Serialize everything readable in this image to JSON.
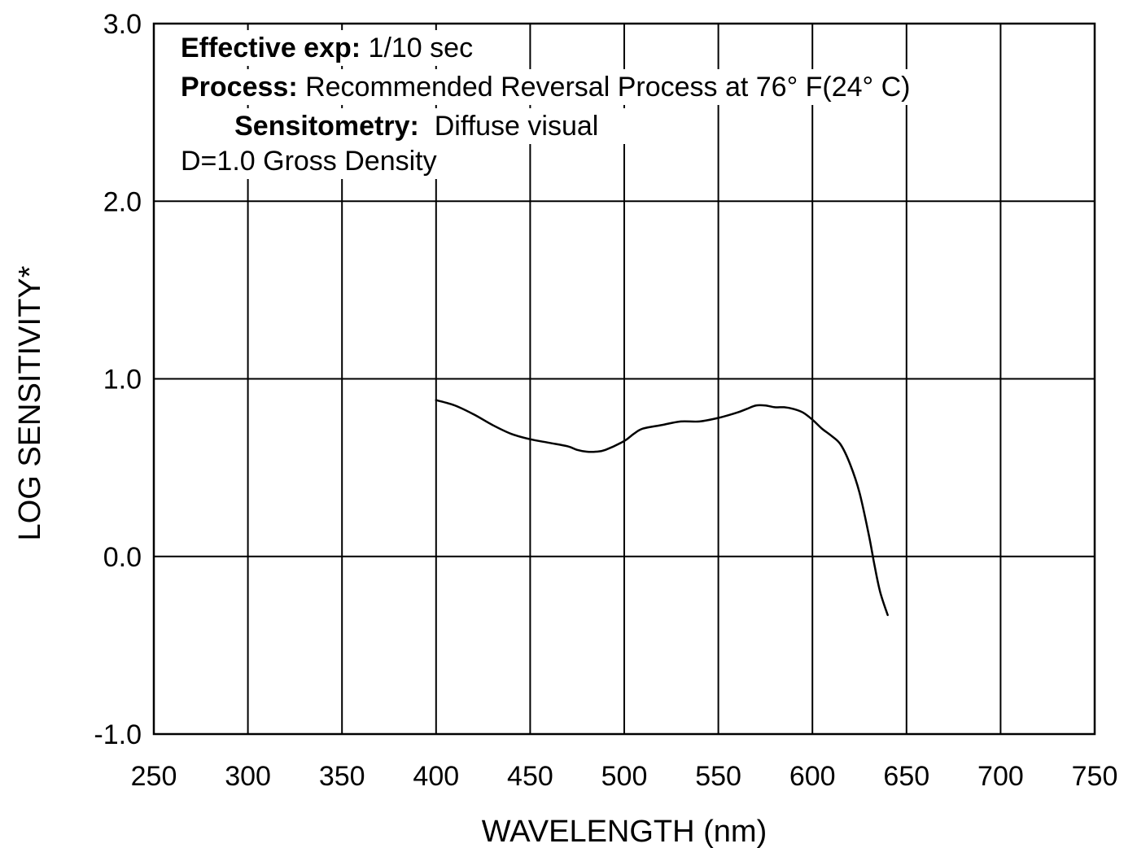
{
  "chart_data": {
    "type": "line",
    "title": "",
    "xlabel": "WAVELENGTH (nm)",
    "ylabel": "LOG SENSITIVITY*",
    "xlim": [
      250,
      750
    ],
    "ylim": [
      -1.0,
      3.0
    ],
    "x_ticks": [
      250,
      300,
      350,
      400,
      450,
      500,
      550,
      600,
      650,
      700,
      750
    ],
    "x_tick_labels": [
      "250",
      "300",
      "350",
      "400",
      "450",
      "500",
      "550",
      "600",
      "650",
      "700",
      "750"
    ],
    "y_ticks": [
      -1.0,
      0.0,
      1.0,
      2.0,
      3.0
    ],
    "y_tick_labels": [
      "-1.0",
      "0.0",
      "1.0",
      "2.0",
      "3.0"
    ],
    "grid": true,
    "legend": "none",
    "annotations": [
      {
        "bold": "Effective exp:",
        "text": " 1/10 sec"
      },
      {
        "bold": "Process:",
        "text": " Recommended Reversal Process at 76° F(24° C)"
      },
      {
        "bold": "Sensitometry:",
        "text": "  Diffuse visual"
      },
      {
        "bold": "",
        "text": "D=1.0 Gross Density"
      }
    ],
    "series": [
      {
        "x": [
          400,
          410,
          420,
          430,
          440,
          450,
          460,
          470,
          475,
          480,
          485,
          490,
          500,
          505,
          510,
          520,
          530,
          540,
          550,
          560,
          565,
          570,
          575,
          580,
          585,
          590,
          595,
          600,
          605,
          610,
          615,
          620,
          625,
          630,
          633,
          636,
          640
        ],
        "y": [
          0.88,
          0.85,
          0.8,
          0.74,
          0.69,
          0.66,
          0.64,
          0.62,
          0.6,
          0.59,
          0.59,
          0.6,
          0.65,
          0.69,
          0.72,
          0.74,
          0.76,
          0.76,
          0.78,
          0.81,
          0.83,
          0.85,
          0.85,
          0.84,
          0.84,
          0.83,
          0.81,
          0.77,
          0.72,
          0.68,
          0.63,
          0.52,
          0.36,
          0.12,
          -0.05,
          -0.2,
          -0.33
        ],
        "color": "#000000"
      }
    ]
  }
}
